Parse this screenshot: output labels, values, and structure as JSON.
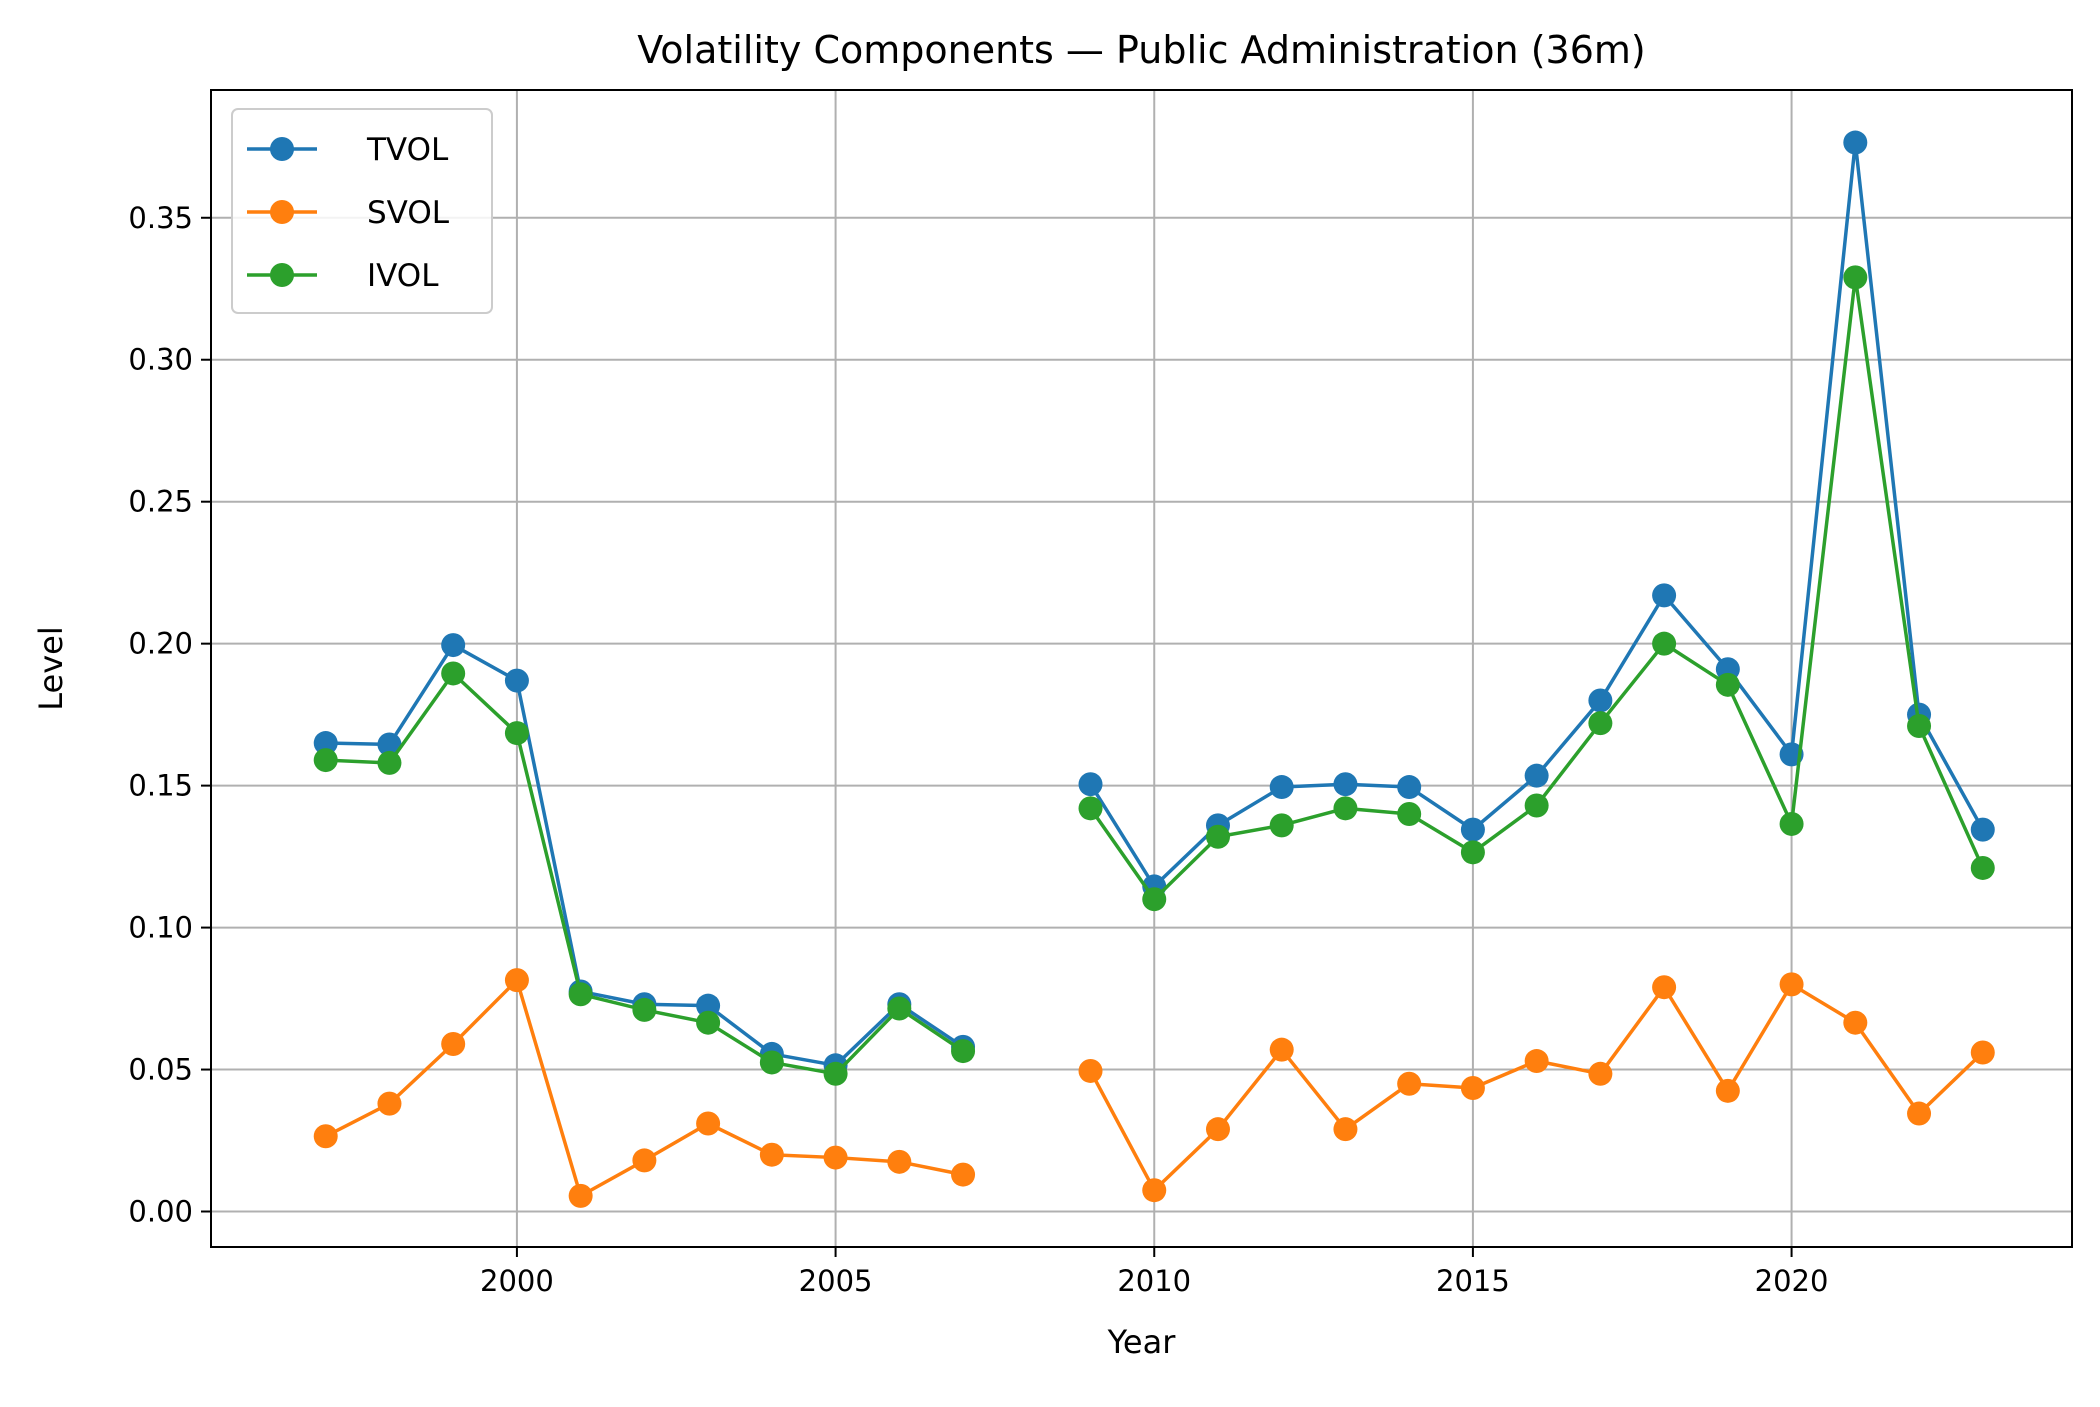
{
  "chart_data": {
    "type": "line",
    "title": "Volatility Components — Public Administration (36m)",
    "xlabel": "Year",
    "ylabel": "Level",
    "xlim": [
      1995.2,
      2024.4
    ],
    "ylim": [
      -0.0125,
      0.395
    ],
    "xticks": [
      2000,
      2005,
      2010,
      2015,
      2020
    ],
    "yticks": [
      0.0,
      0.05,
      0.1,
      0.15,
      0.2,
      0.25,
      0.3,
      0.35
    ],
    "ytick_labels": [
      "0.00",
      "0.05",
      "0.10",
      "0.15",
      "0.20",
      "0.25",
      "0.30",
      "0.35"
    ],
    "grid": true,
    "legend_position": "upper-left",
    "x": [
      1997,
      1998,
      1999,
      2000,
      2001,
      2002,
      2003,
      2004,
      2005,
      2006,
      2007,
      2008,
      2009,
      2010,
      2011,
      2012,
      2013,
      2014,
      2015,
      2016,
      2017,
      2018,
      2019,
      2020,
      2021,
      2022,
      2023
    ],
    "series": [
      {
        "name": "TVOL",
        "color": "#1f77b4",
        "values": [
          0.165,
          0.1645,
          0.1995,
          0.187,
          0.0775,
          0.073,
          0.0725,
          0.0555,
          0.0515,
          0.073,
          0.058,
          null,
          0.1505,
          0.1145,
          0.136,
          0.1495,
          0.1505,
          0.1495,
          0.1345,
          0.1535,
          0.18,
          0.217,
          0.191,
          0.161,
          0.3765,
          0.175,
          0.1345
        ]
      },
      {
        "name": "SVOL",
        "color": "#ff7f0e",
        "values": [
          0.0265,
          0.038,
          0.059,
          0.0815,
          0.0055,
          0.018,
          0.031,
          0.02,
          0.019,
          0.0175,
          0.013,
          null,
          0.0495,
          0.0075,
          0.029,
          0.057,
          0.029,
          0.045,
          0.0435,
          0.053,
          0.0485,
          0.079,
          0.0425,
          0.08,
          0.0665,
          0.0345,
          0.056
        ]
      },
      {
        "name": "IVOL",
        "color": "#2ca02c",
        "values": [
          0.159,
          0.158,
          0.1895,
          0.1685,
          0.0765,
          0.071,
          0.0665,
          0.0525,
          0.0485,
          0.0715,
          0.0565,
          null,
          0.142,
          0.11,
          0.132,
          0.136,
          0.142,
          0.14,
          0.1265,
          0.143,
          0.172,
          0.2,
          0.1855,
          0.1365,
          0.329,
          0.171,
          0.121
        ]
      }
    ]
  }
}
